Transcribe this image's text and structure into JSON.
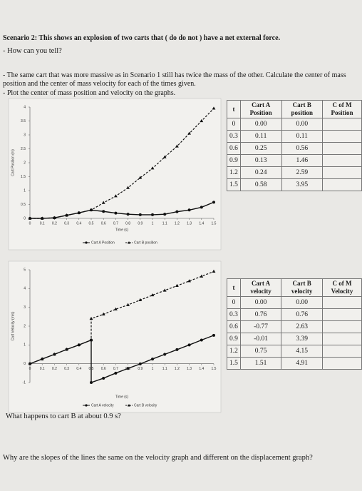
{
  "header": {
    "scenario": "Scenario 2: This shows an explosion of two carts that (  do  do not  ) have a net external force.",
    "question1": "How can you tell?",
    "instructions": "The same cart that was more massive as in Scenario 1 still has twice the mass of the other. Calculate the center of mass position and the center of mass velocity for each of the times given.",
    "plot_note": "Plot the center of mass position and velocity on the graphs."
  },
  "chart_data": [
    {
      "type": "line",
      "ylabel": "Cart Position (m)",
      "xlabel": "Time (s)",
      "xlim": [
        0,
        1.5
      ],
      "ylim": [
        0,
        4
      ],
      "xticks": [
        0,
        0.1,
        0.2,
        0.3,
        0.4,
        0.5,
        0.6,
        0.7,
        0.8,
        0.9,
        1,
        1.1,
        1.2,
        1.3,
        1.4,
        1.5
      ],
      "yticks": [
        0,
        0.5,
        1,
        1.5,
        2,
        2.5,
        3,
        3.5,
        4
      ],
      "legend": "bottom",
      "series": [
        {
          "name": "Cart A Position",
          "color": "#111111",
          "marker": "circle",
          "dash": false,
          "x": [
            0,
            0.1,
            0.2,
            0.3,
            0.4,
            0.5,
            0.6,
            0.7,
            0.8,
            0.9,
            1,
            1.1,
            1.2,
            1.3,
            1.4,
            1.5
          ],
          "values": [
            0,
            0,
            0.02,
            0.11,
            0.2,
            0.3,
            0.25,
            0.19,
            0.15,
            0.13,
            0.13,
            0.15,
            0.24,
            0.3,
            0.4,
            0.58
          ]
        },
        {
          "name": "Cart B position",
          "color": "#111111",
          "marker": "triangle",
          "dash": true,
          "x": [
            0,
            0.1,
            0.2,
            0.3,
            0.4,
            0.5,
            0.6,
            0.7,
            0.8,
            0.9,
            1,
            1.1,
            1.2,
            1.3,
            1.4,
            1.5
          ],
          "values": [
            0,
            0,
            0.02,
            0.11,
            0.2,
            0.3,
            0.56,
            0.8,
            1.1,
            1.46,
            1.8,
            2.2,
            2.59,
            3.05,
            3.5,
            3.95
          ]
        }
      ]
    },
    {
      "type": "line",
      "ylabel": "Cart Velocity (m/s)",
      "xlabel": "Time (s)",
      "xlim": [
        0,
        1.5
      ],
      "ylim": [
        -1,
        5
      ],
      "xticks": [
        0,
        0.1,
        0.2,
        0.3,
        0.4,
        0.5,
        0.6,
        0.7,
        0.8,
        0.9,
        1,
        1.1,
        1.2,
        1.3,
        1.4,
        1.5
      ],
      "yticks": [
        -1,
        0,
        1,
        2,
        3,
        4,
        5
      ],
      "legend": "bottom",
      "series": [
        {
          "name": "Cart A velocity",
          "color": "#111111",
          "marker": "circle",
          "dash": false,
          "x": [
            0,
            0.1,
            0.2,
            0.3,
            0.4,
            0.5,
            0.5,
            0.6,
            0.7,
            0.8,
            0.9,
            1,
            1.1,
            1.2,
            1.3,
            1.4,
            1.5
          ],
          "values": [
            0,
            0.25,
            0.5,
            0.76,
            1.0,
            1.26,
            -1.0,
            -0.77,
            -0.5,
            -0.25,
            -0.01,
            0.25,
            0.5,
            0.75,
            1.0,
            1.26,
            1.51
          ]
        },
        {
          "name": "Cart B velocity",
          "color": "#111111",
          "marker": "triangle",
          "dash": true,
          "x": [
            0,
            0.1,
            0.2,
            0.3,
            0.4,
            0.5,
            0.5,
            0.6,
            0.7,
            0.8,
            0.9,
            1,
            1.1,
            1.2,
            1.3,
            1.4,
            1.5
          ],
          "values": [
            0,
            0.25,
            0.5,
            0.76,
            1.0,
            1.26,
            2.4,
            2.63,
            2.9,
            3.13,
            3.39,
            3.65,
            3.9,
            4.15,
            4.4,
            4.65,
            4.91
          ]
        }
      ]
    }
  ],
  "tables": [
    {
      "headers": [
        "t",
        "Cart A Position",
        "Cart B position",
        "C of M Position"
      ],
      "rows": [
        [
          "0",
          "0.00",
          "0.00"
        ],
        [
          "0.3",
          "0.11",
          "0.11"
        ],
        [
          "0.6",
          "0.25",
          "0.56"
        ],
        [
          "0.9",
          "0.13",
          "1.46"
        ],
        [
          "1.2",
          "0.24",
          "2.59"
        ],
        [
          "1.5",
          "0.58",
          "3.95"
        ]
      ]
    },
    {
      "headers": [
        "t",
        "Cart A velocity",
        "Cart B velocity",
        "C of M Velocity"
      ],
      "rows": [
        [
          "0",
          "0.00",
          "0.00"
        ],
        [
          "0.3",
          "0.76",
          "0.76"
        ],
        [
          "0.6",
          "-0.77",
          "2.63"
        ],
        [
          "0.9",
          "-0.01",
          "3.39"
        ],
        [
          "1.2",
          "0.75",
          "4.15"
        ],
        [
          "1.5",
          "1.51",
          "4.91"
        ]
      ]
    }
  ],
  "footer": {
    "question2": "What happens to cart B at about 0.9 s?",
    "question3": "Why are the slopes of the lines the same on the velocity graph and different on the displacement graph?"
  }
}
